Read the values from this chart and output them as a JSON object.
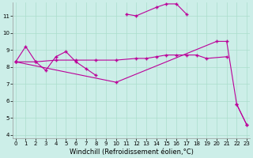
{
  "background_color": "#cceee8",
  "line_color": "#bb0099",
  "xlabel": "Windchill (Refroidissement éolien,°C)",
  "xlabel_fontsize": 6,
  "ylim": [
    3.8,
    11.8
  ],
  "xlim": [
    -0.3,
    23.3
  ],
  "yticks": [
    4,
    5,
    6,
    7,
    8,
    9,
    10,
    11
  ],
  "xticks": [
    0,
    1,
    2,
    3,
    4,
    5,
    6,
    7,
    8,
    9,
    10,
    11,
    12,
    13,
    14,
    15,
    16,
    17,
    18,
    19,
    20,
    21,
    22,
    23
  ],
  "grid_color": "#aaddcc",
  "line1": [
    [
      0,
      8.3
    ],
    [
      1,
      9.2
    ],
    [
      2,
      8.3
    ],
    [
      3,
      7.8
    ],
    [
      4,
      8.6
    ],
    [
      5,
      8.9
    ],
    [
      6,
      8.3
    ],
    [
      7,
      7.9
    ],
    [
      8,
      7.5
    ]
  ],
  "line1b": [
    [
      11,
      11.1
    ],
    [
      12,
      11.0
    ],
    [
      14,
      11.5
    ],
    [
      15,
      11.7
    ],
    [
      16,
      11.7
    ],
    [
      17,
      11.1
    ]
  ],
  "line1c": [
    [
      22,
      5.8
    ],
    [
      23,
      4.6
    ]
  ],
  "line2": [
    [
      0,
      8.3
    ],
    [
      2,
      8.3
    ],
    [
      4,
      8.4
    ],
    [
      6,
      8.4
    ],
    [
      8,
      8.4
    ],
    [
      10,
      8.4
    ],
    [
      12,
      8.5
    ],
    [
      13,
      8.5
    ],
    [
      14,
      8.6
    ],
    [
      15,
      8.7
    ],
    [
      16,
      8.7
    ],
    [
      17,
      8.7
    ],
    [
      18,
      8.7
    ],
    [
      19,
      8.5
    ],
    [
      21,
      8.6
    ]
  ],
  "line3": [
    [
      0,
      8.3
    ],
    [
      10,
      7.1
    ],
    [
      20,
      9.5
    ],
    [
      21,
      9.5
    ],
    [
      22,
      5.8
    ],
    [
      23,
      4.6
    ]
  ]
}
